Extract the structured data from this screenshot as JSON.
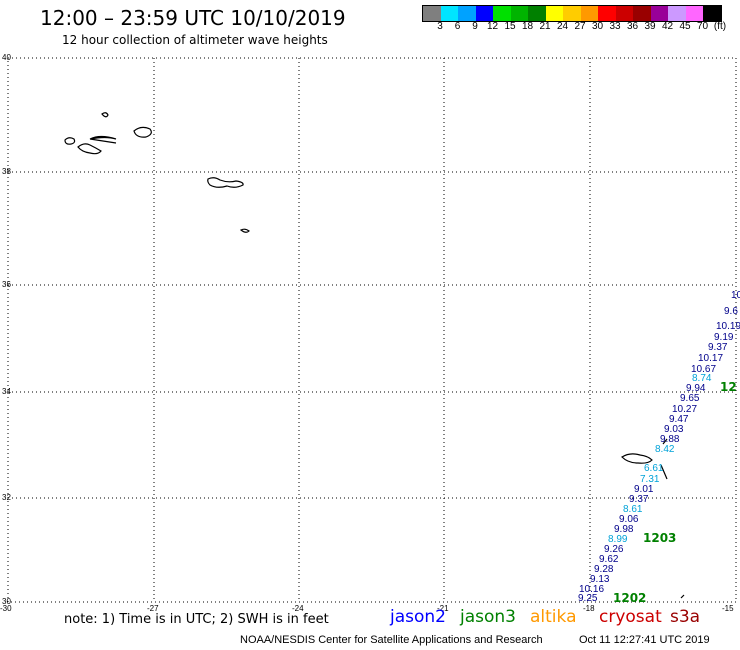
{
  "title": "12:00 – 23:59 UTC 10/10/2019",
  "subtitle": "12 hour collection of altimeter wave heights",
  "legend": {
    "colors": [
      "#7f7f7f",
      "#00e5ff",
      "#00a2ff",
      "#0000ff",
      "#00e000",
      "#00b400",
      "#008000",
      "#ffff00",
      "#ffcc00",
      "#ff9900",
      "#ff0000",
      "#cc0000",
      "#990000",
      "#990099",
      "#cc99ff",
      "#ff66ff",
      "#000000"
    ],
    "labels": [
      "3",
      "6",
      "9",
      "12",
      "15",
      "18",
      "21",
      "24",
      "27",
      "30",
      "33",
      "36",
      "39",
      "42",
      "45",
      "70",
      "(ft)"
    ]
  },
  "lat_labels": [
    "40",
    "38",
    "36",
    "34",
    "32",
    "30"
  ],
  "lon_labels": [
    "-30",
    "-27",
    "-24",
    "-21",
    "-18",
    "-15"
  ],
  "track_values": [
    {
      "v": "10",
      "c": "#00008b"
    },
    {
      "v": "9.6",
      "c": "#00008b"
    },
    {
      "v": "10.19",
      "c": "#00008b"
    },
    {
      "v": "9.19",
      "c": "#00008b"
    },
    {
      "v": "9.37",
      "c": "#00008b"
    },
    {
      "v": "10.17",
      "c": "#00008b"
    },
    {
      "v": "10.67",
      "c": "#00008b"
    },
    {
      "v": "8.74",
      "c": "#00a2d8"
    },
    {
      "v": "9.94",
      "c": "#00008b"
    },
    {
      "v": "9.65",
      "c": "#00008b"
    },
    {
      "v": "10.27",
      "c": "#00008b"
    },
    {
      "v": "9.47",
      "c": "#00008b"
    },
    {
      "v": "9.03",
      "c": "#00008b"
    },
    {
      "v": "9.88",
      "c": "#00008b"
    },
    {
      "v": "8.42",
      "c": "#00a2d8"
    },
    {
      "v": "6.61",
      "c": "#00a2d8"
    },
    {
      "v": "7.31",
      "c": "#00a2d8"
    },
    {
      "v": "9.01",
      "c": "#00008b"
    },
    {
      "v": "9.37",
      "c": "#00008b"
    },
    {
      "v": "8.61",
      "c": "#00a2d8"
    },
    {
      "v": "9.06",
      "c": "#00008b"
    },
    {
      "v": "9.98",
      "c": "#00008b"
    },
    {
      "v": "8.99",
      "c": "#00a2d8"
    },
    {
      "v": "9.26",
      "c": "#00008b"
    },
    {
      "v": "9.62",
      "c": "#00008b"
    },
    {
      "v": "9.28",
      "c": "#00008b"
    },
    {
      "v": "9.13",
      "c": "#00008b"
    },
    {
      "v": "10.16",
      "c": "#00008b"
    },
    {
      "v": "9.25",
      "c": "#00008b"
    }
  ],
  "time_labels": [
    "12",
    "1203",
    "1202"
  ],
  "time_color": "#008000",
  "note": "note: 1) Time is in UTC; 2) SWH is in feet",
  "satellites": [
    {
      "name": "jason2",
      "color": "#0000ff"
    },
    {
      "name": "jason3",
      "color": "#008000"
    },
    {
      "name": "altika",
      "color": "#ff9900"
    },
    {
      "name": "cryosat",
      "color": "#cc0000"
    },
    {
      "name": "s3a",
      "color": "#990000"
    }
  ],
  "footer": "NOAA/NESDIS Center for Satellite Applications and Research",
  "footer_time": "Oct 11 12:27:41 UTC 2019"
}
